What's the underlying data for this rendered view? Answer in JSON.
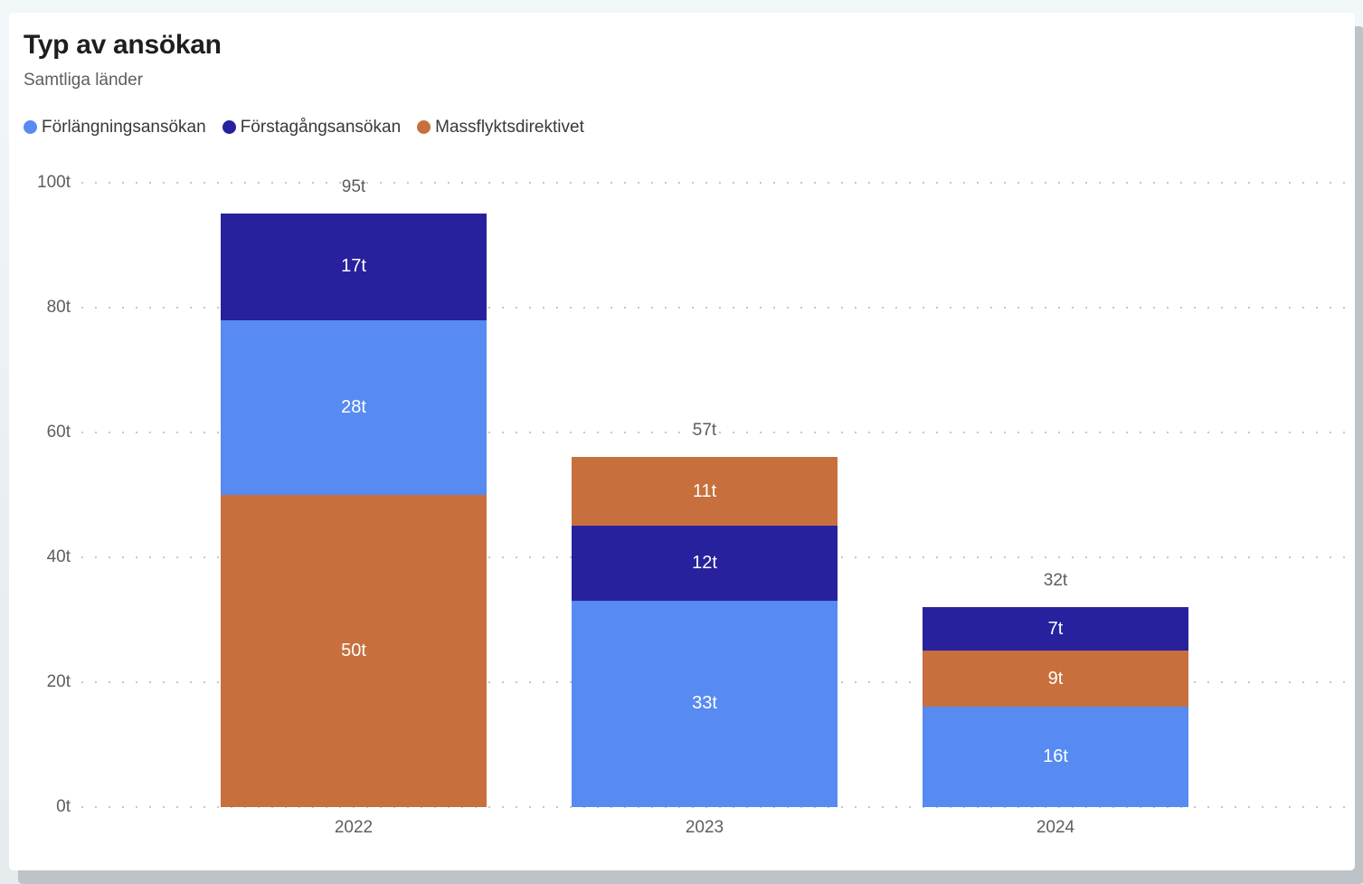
{
  "card": {
    "background": "#ffffff",
    "shadow_color": "#bdc3c6",
    "page_background": "#e9eef1"
  },
  "chart_data": {
    "type": "bar",
    "variant": "stacked-column",
    "title": "Typ av ansökan",
    "subtitle": "Samtliga länder",
    "unit": "t",
    "legend_position": "top",
    "grid": "dotted-horizontal",
    "legend": [
      {
        "name": "Förlängningsansökan",
        "color": "#578bf2"
      },
      {
        "name": "Förstagångsansökan",
        "color": "#27219e"
      },
      {
        "name": "Massflyktsdirektivet",
        "color": "#c7703d"
      }
    ],
    "categories": [
      "2022",
      "2023",
      "2024"
    ],
    "series": [
      {
        "name": "Förlängningsansökan",
        "color": "#578bf2",
        "values": [
          28,
          33,
          16
        ]
      },
      {
        "name": "Förstagångsansökan",
        "color": "#27219e",
        "values": [
          17,
          12,
          7
        ]
      },
      {
        "name": "Massflyktsdirektivet",
        "color": "#c7703d",
        "values": [
          50,
          11,
          9
        ]
      }
    ],
    "y_axis": {
      "min": 0,
      "max": 100,
      "ticks": [
        {
          "value": 0,
          "label": "0t"
        },
        {
          "value": 20,
          "label": "20t"
        },
        {
          "value": 40,
          "label": "40t"
        },
        {
          "value": 60,
          "label": "60t"
        },
        {
          "value": 80,
          "label": "80t"
        },
        {
          "value": 100,
          "label": "100t"
        }
      ]
    },
    "bars": [
      {
        "category": "2022",
        "total": 95,
        "total_label": "95t",
        "segments_top_to_bottom": [
          {
            "series": "Förstagångsansökan",
            "value": 17,
            "label": "17t",
            "color": "#27219e"
          },
          {
            "series": "Förlängningsansökan",
            "value": 28,
            "label": "28t",
            "color": "#578bf2"
          },
          {
            "series": "Massflyktsdirektivet",
            "value": 50,
            "label": "50t",
            "color": "#c7703d"
          }
        ]
      },
      {
        "category": "2023",
        "total": 57,
        "total_label": "57t",
        "segments_top_to_bottom": [
          {
            "series": "Massflyktsdirektivet",
            "value": 11,
            "label": "11t",
            "color": "#c7703d"
          },
          {
            "series": "Förstagångsansökan",
            "value": 12,
            "label": "12t",
            "color": "#27219e"
          },
          {
            "series": "Förlängningsansökan",
            "value": 33,
            "label": "33t",
            "color": "#578bf2"
          }
        ]
      },
      {
        "category": "2024",
        "total": 32,
        "total_label": "32t",
        "segments_top_to_bottom": [
          {
            "series": "Förstagångsansökan",
            "value": 7,
            "label": "7t",
            "color": "#27219e"
          },
          {
            "series": "Massflyktsdirektivet",
            "value": 9,
            "label": "9t",
            "color": "#c7703d"
          },
          {
            "series": "Förlängningsansökan",
            "value": 16,
            "label": "16t",
            "color": "#578bf2"
          }
        ]
      }
    ]
  }
}
